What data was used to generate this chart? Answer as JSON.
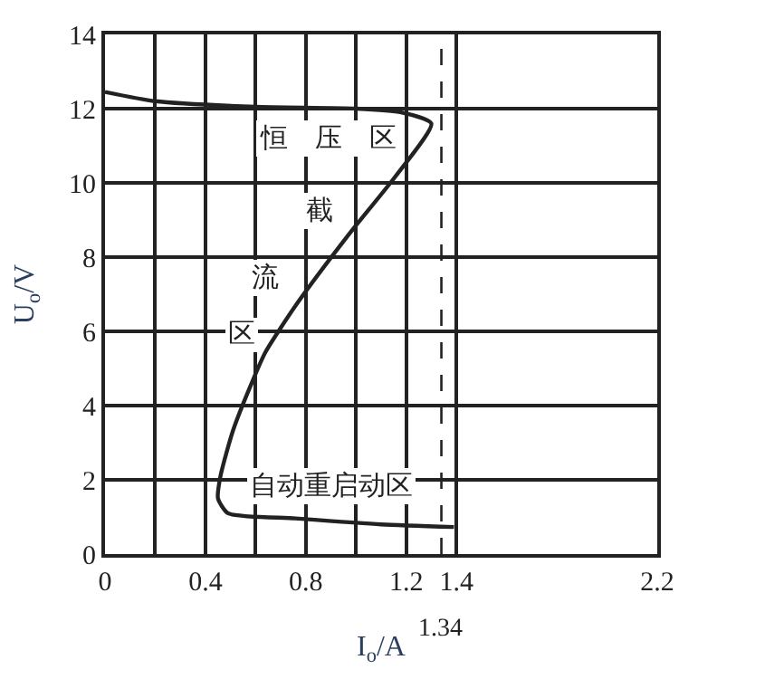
{
  "chart_data": {
    "type": "line",
    "xlabel": "I$_{o}$/A",
    "ylabel": "U$_{o}$/V",
    "series": [
      {
        "color": "#222222",
        "x": [
          0,
          0.2,
          0.6,
          1.0,
          1.18,
          1.3,
          1.16,
          0.97,
          0.76,
          0.64,
          0.59,
          0.51,
          0.46,
          0.45,
          0.49,
          0.76,
          1.1,
          1.39
        ],
        "values": [
          12.45,
          12.2,
          12.05,
          12.0,
          11.9,
          11.6,
          10.2,
          8.6,
          6.7,
          5.45,
          4.7,
          3.33,
          2.1,
          1.5,
          1.1,
          0.96,
          0.8,
          0.73
        ]
      }
    ],
    "xlim": [
      0,
      2.2
    ],
    "ylim": [
      0,
      14
    ],
    "xticks": [
      0,
      {
        "value": 0.2,
        "label": null
      },
      0.4,
      {
        "value": 0.6,
        "label": null
      },
      0.8,
      {
        "value": 1.0,
        "label": null
      },
      1.2,
      1.4,
      2.2
    ],
    "yticks": [
      0,
      2,
      4,
      6,
      8,
      10,
      12,
      14
    ],
    "grid": true,
    "marker": "none",
    "line_style": "solid",
    "ref_lines": [
      {
        "axis": "x",
        "value": 1.34,
        "label": "1.34",
        "line_style": "dashed",
        "color": "#222222"
      }
    ],
    "annotations": [
      "恒　压　区",
      "截",
      "流",
      "区",
      "自动重启动区"
    ]
  }
}
